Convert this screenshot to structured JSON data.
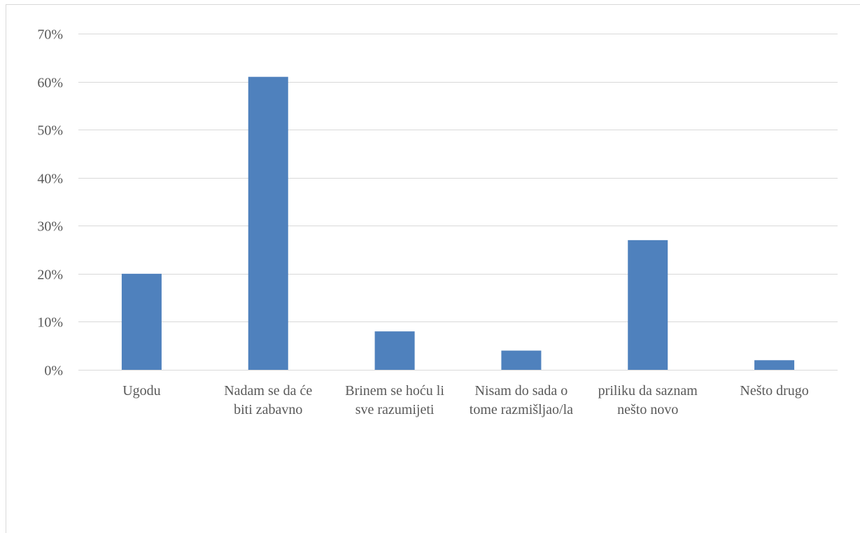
{
  "chart_data": {
    "type": "bar",
    "categories": [
      [
        "Ugodu"
      ],
      [
        "Nadam se da će",
        "biti zabavno"
      ],
      [
        "Brinem se hoću li",
        "sve razumijeti"
      ],
      [
        "Nisam do sada o",
        "tome razmišljao/la"
      ],
      [
        "priliku da saznam",
        "nešto novo"
      ],
      [
        "Nešto drugo"
      ]
    ],
    "values": [
      20,
      61,
      8,
      4,
      27,
      2
    ],
    "unit": "%",
    "ylim": [
      0,
      70
    ],
    "yticks": [
      0,
      10,
      20,
      30,
      40,
      50,
      60,
      70
    ],
    "ytick_labels": [
      "0%",
      "10%",
      "20%",
      "30%",
      "40%",
      "50%",
      "60%",
      "70%"
    ],
    "title": "",
    "xlabel": "",
    "ylabel": "",
    "grid": true,
    "legend": "none",
    "colors": {
      "bar": "#4f81bd",
      "grid": "#d9d9d9",
      "axis": "#d9d9d9",
      "text": "#595959"
    }
  }
}
